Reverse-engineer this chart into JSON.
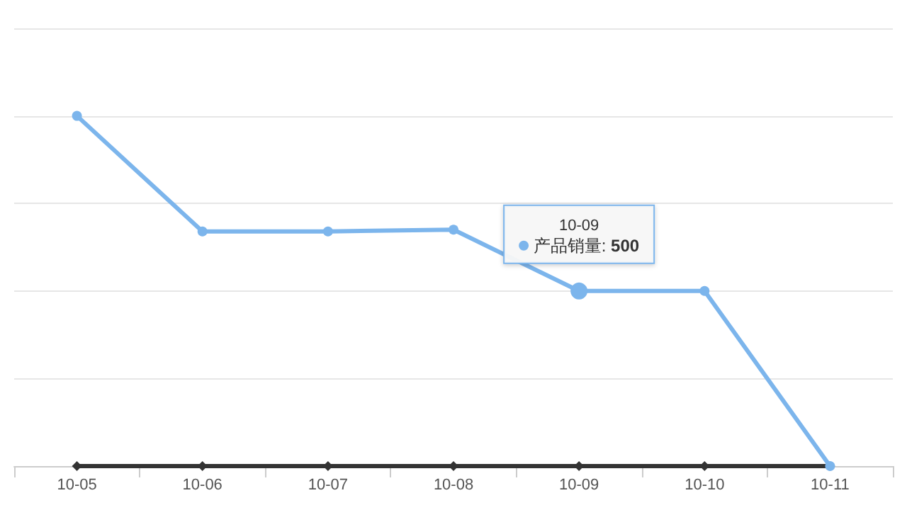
{
  "chart_data": {
    "type": "line",
    "categories": [
      "10-05",
      "10-06",
      "10-07",
      "10-08",
      "10-09",
      "10-10",
      "10-11"
    ],
    "series": [
      {
        "name": "产品销量:",
        "color": "#7cb5ec",
        "values": [
          1000,
          670,
          670,
          675,
          500,
          500,
          0
        ],
        "value_labels": [
          null,
          null,
          null,
          null,
          "500",
          null,
          null
        ],
        "marker": "circle"
      },
      {
        "color": "#333333",
        "values": [
          0,
          0,
          0,
          0,
          0,
          0,
          0
        ],
        "marker": "diamond"
      }
    ],
    "ylim": [
      0,
      1250
    ],
    "yticks": [
      {
        "value": 0,
        "label": null
      },
      {
        "value": 250,
        "label": null
      },
      {
        "value": 500,
        "label": null
      },
      {
        "value": 750,
        "label": null
      },
      {
        "value": 1000,
        "label": null
      },
      {
        "value": 1250,
        "label": null
      }
    ],
    "grid": "y",
    "tick_labels": "x",
    "legend": "center"
  }
}
